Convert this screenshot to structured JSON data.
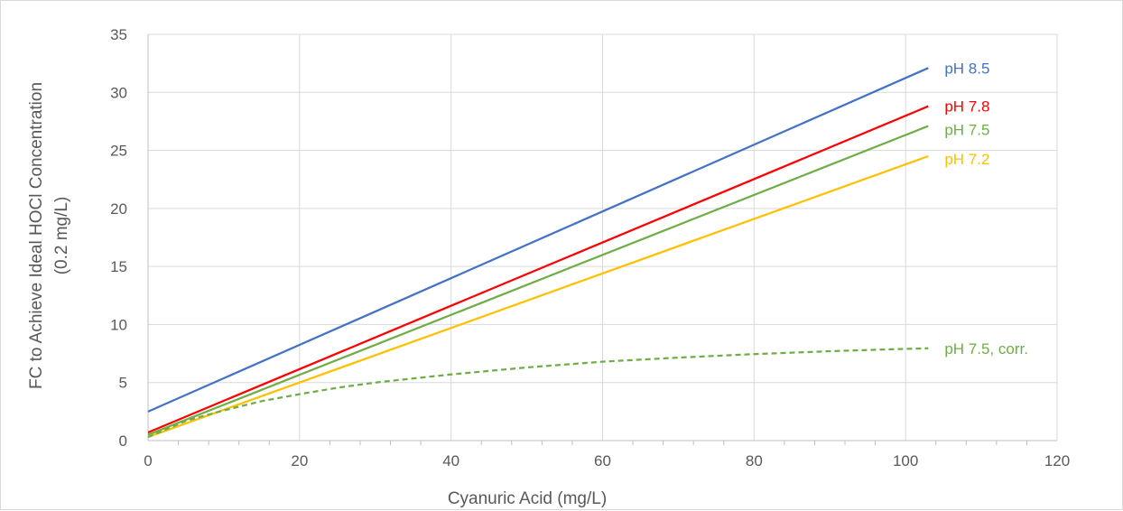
{
  "chart_data": {
    "type": "line",
    "title": "",
    "xlabel": "Cyanuric Acid (mg/L)",
    "ylabel_line1": "FC to Achieve Ideal HOCl Concentration",
    "ylabel_line2": "(0.2 mg/L)",
    "xlim": [
      0,
      120
    ],
    "ylim": [
      0,
      35
    ],
    "x_ticks": [
      0,
      20,
      40,
      60,
      80,
      100,
      120
    ],
    "y_ticks": [
      0,
      5,
      10,
      15,
      20,
      25,
      30,
      35
    ],
    "grid": true,
    "legend": "inline labels at right end of each line",
    "series": [
      {
        "name": "pH 8.5",
        "color": "#4472c4",
        "dash": false,
        "x": [
          0,
          103
        ],
        "y": [
          2.5,
          32.1
        ]
      },
      {
        "name": "pH 7.8",
        "color": "#ff0000",
        "dash": false,
        "x": [
          0,
          103
        ],
        "y": [
          0.7,
          28.8
        ]
      },
      {
        "name": "pH 7.5",
        "color": "#70ad47",
        "dash": false,
        "x": [
          0,
          103
        ],
        "y": [
          0.5,
          27.1
        ]
      },
      {
        "name": "pH 7.2",
        "color": "#ffc000",
        "dash": false,
        "x": [
          0,
          103
        ],
        "y": [
          0.3,
          24.5
        ]
      },
      {
        "name": "pH 7.5, corr.",
        "color": "#70ad47",
        "dash": true,
        "x": [
          0,
          5,
          10,
          15,
          20,
          25,
          30,
          40,
          50,
          60,
          70,
          80,
          90,
          100,
          103
        ],
        "y": [
          0.3,
          1.7,
          2.6,
          3.4,
          4.0,
          4.55,
          5.0,
          5.7,
          6.3,
          6.8,
          7.15,
          7.45,
          7.7,
          7.9,
          7.95
        ]
      }
    ]
  }
}
